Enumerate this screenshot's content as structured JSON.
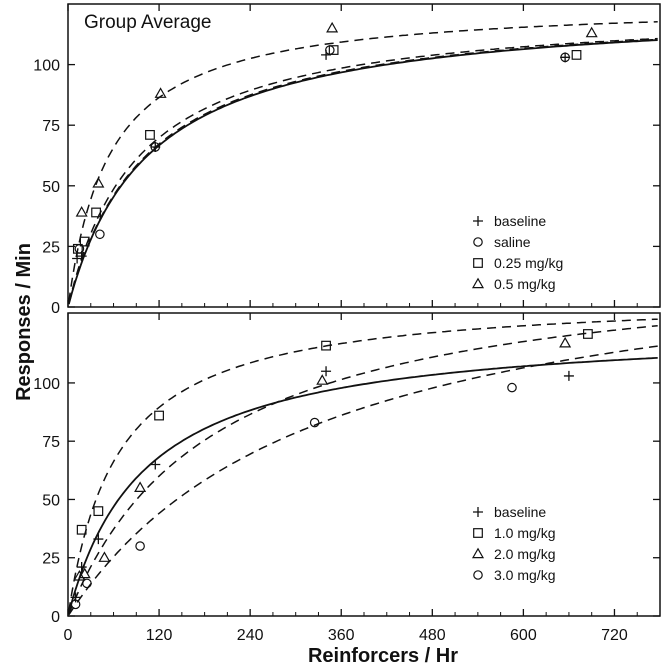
{
  "figure": {
    "ylabel": "Responses / Min",
    "xlabel": "Reinforcers / Hr"
  },
  "chart_data": [
    {
      "type": "scatter",
      "title": "Group Average",
      "xlim": [
        0,
        780
      ],
      "ylim": [
        0,
        125
      ],
      "xticks": [
        0,
        120,
        240,
        360,
        480,
        600,
        720
      ],
      "xtick_labels": [
        "0",
        "120",
        "240",
        "360",
        "480",
        "600",
        "720"
      ],
      "yticks": [
        0,
        25,
        50,
        75,
        100
      ],
      "ytick_labels": [
        "0",
        "25",
        "50",
        "75",
        "100"
      ],
      "legend_position": "right",
      "series": [
        {
          "name": "baseline",
          "marker": "plus",
          "line": "solid",
          "Rmax": 125,
          "K": 105,
          "x": [
            12,
            18,
            115,
            340,
            655
          ],
          "y": [
            20,
            21,
            66,
            104,
            103
          ]
        },
        {
          "name": "saline",
          "marker": "circle",
          "line": "dashed",
          "Rmax": 125,
          "K": 103,
          "x": [
            15,
            42,
            115,
            345,
            655
          ],
          "y": [
            24,
            30,
            66,
            106,
            103
          ]
        },
        {
          "name": "0.25 mg/kg",
          "marker": "square",
          "line": "dashed",
          "Rmax": 124,
          "K": 93,
          "x": [
            13,
            22,
            37,
            108,
            350,
            670
          ],
          "y": [
            24,
            27,
            39,
            71,
            106,
            104
          ]
        },
        {
          "name": "0.5 mg/kg",
          "marker": "triangle",
          "line": "dashed",
          "Rmax": 126,
          "K": 55,
          "x": [
            18,
            40,
            122,
            348,
            690
          ],
          "y": [
            39,
            51,
            88,
            115,
            113
          ]
        }
      ]
    },
    {
      "type": "scatter",
      "xlim": [
        0,
        780
      ],
      "ylim": [
        0,
        130
      ],
      "xticks": [
        0,
        120,
        240,
        360,
        480,
        600,
        720
      ],
      "xtick_labels": [
        "0",
        "120",
        "240",
        "360",
        "480",
        "600",
        "720"
      ],
      "yticks": [
        0,
        25,
        50,
        75,
        100
      ],
      "ytick_labels": [
        "0",
        "25",
        "50",
        "75",
        "100"
      ],
      "legend_position": "bottom-right",
      "series": [
        {
          "name": "baseline",
          "marker": "plus",
          "line": "solid",
          "Rmax": 125,
          "K": 100,
          "x": [
            10,
            18,
            40,
            115,
            340,
            660
          ],
          "y": [
            8,
            21,
            33,
            65,
            105,
            103
          ]
        },
        {
          "name": "1.0 mg/kg",
          "marker": "square",
          "line": "dashed",
          "Rmax": 138,
          "K": 65,
          "x": [
            18,
            40,
            120,
            340,
            685
          ],
          "y": [
            37,
            45,
            86,
            116,
            121
          ]
        },
        {
          "name": "2.0 mg/kg",
          "marker": "triangle",
          "line": "dashed",
          "Rmax": 155,
          "K": 190,
          "x": [
            15,
            22,
            48,
            95,
            335,
            655
          ],
          "y": [
            17,
            18,
            25,
            55,
            101,
            117
          ]
        },
        {
          "name": "3.0 mg/kg",
          "marker": "circle",
          "line": "dashed",
          "Rmax": 165,
          "K": 330,
          "x": [
            10,
            25,
            95,
            325,
            585
          ],
          "y": [
            5,
            14,
            30,
            83,
            98
          ]
        }
      ]
    }
  ]
}
